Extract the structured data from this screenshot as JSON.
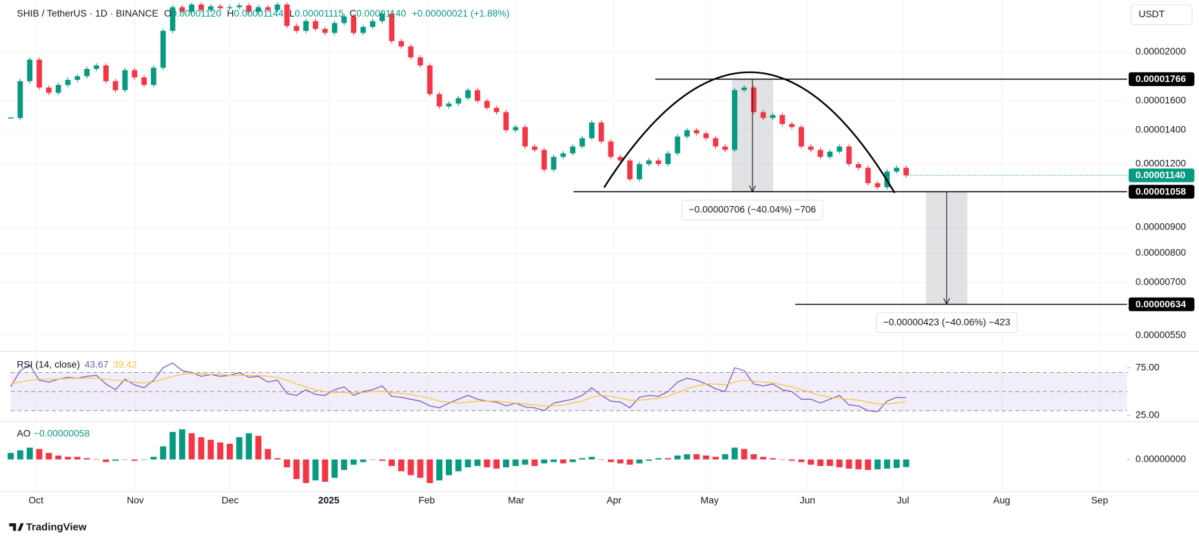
{
  "header": {
    "symbol": "SHIB / TetherUS · 1D · BINANCE",
    "o": "O",
    "open": "0.00001120",
    "h": "H",
    "high": "0.00001144",
    "l": "L",
    "low": "0.00001115",
    "c": "C",
    "close": "0.00001140",
    "change": "+0.00000021 (+1.88%)"
  },
  "currency": "USDT",
  "footer": "TradingView",
  "annotations": [
    "−0.00000706 (−40.04%) −706",
    "−0.00000423 (−40.06%) −423"
  ],
  "chart_data": [
    {
      "type": "candlestick",
      "log": true,
      "up_color": "#089981",
      "down_color": "#f23645",
      "categories": [
        "Oct",
        "Nov",
        "Dec",
        "2025",
        "Feb",
        "Mar",
        "Apr",
        "May",
        "Jun",
        "Jul",
        "Aug",
        "Sep"
      ],
      "closes": [
        1.48e-05,
        1.75e-05,
        1.93e-05,
        1.7e-05,
        1.66e-05,
        1.72e-05,
        1.76e-05,
        1.79e-05,
        1.85e-05,
        1.88e-05,
        1.75e-05,
        1.68e-05,
        1.84e-05,
        1.78e-05,
        1.72e-05,
        1.86e-05,
        2.2e-05,
        2.45e-05,
        2.4e-05,
        2.48e-05,
        2.42e-05,
        2.46e-05,
        2.44e-05,
        2.45e-05,
        2.47e-05,
        2.4e-05,
        2.45e-05,
        2.42e-05,
        2.48e-05,
        2.25e-05,
        2.2e-05,
        2.3e-05,
        2.22e-05,
        2.18e-05,
        2.28e-05,
        2.35e-05,
        2.18e-05,
        2.24e-05,
        2.3e-05,
        2.38e-05,
        2.1e-05,
        2.05e-05,
        1.95e-05,
        1.88e-05,
        1.65e-05,
        1.56e-05,
        1.58e-05,
        1.62e-05,
        1.68e-05,
        1.6e-05,
        1.55e-05,
        1.52e-05,
        1.4e-05,
        1.42e-05,
        1.3e-05,
        1.28e-05,
        1.17e-05,
        1.24e-05,
        1.26e-05,
        1.3e-05,
        1.35e-05,
        1.45e-05,
        1.33e-05,
        1.24e-05,
        1.22e-05,
        1.12e-05,
        1.2e-05,
        1.22e-05,
        1.2e-05,
        1.26e-05,
        1.36e-05,
        1.4e-05,
        1.38e-05,
        1.35e-05,
        1.3e-05,
        1.28e-05,
        1.68e-05,
        1.7e-05,
        1.52e-05,
        1.48e-05,
        1.5e-05,
        1.44e-05,
        1.42e-05,
        1.3e-05,
        1.28e-05,
        1.24e-05,
        1.27e-05,
        1.3e-05,
        1.2e-05,
        1.18e-05,
        1.1e-05,
        1.08e-05,
        1.16e-05,
        1.18e-05,
        1.14e-05
      ],
      "ylim": [
        5.14e-06,
        2.53e-05
      ],
      "yticks": [
        {
          "value": 2e-05,
          "label": "0.00002000"
        },
        {
          "value": 1.6e-05,
          "label": "0.00001600"
        },
        {
          "value": 1.4e-05,
          "label": "0.00001400"
        },
        {
          "value": 1.2e-05,
          "label": "0.00001200"
        },
        {
          "value": 9e-06,
          "label": "0.00000900"
        },
        {
          "value": 8e-06,
          "label": "0.00000800"
        },
        {
          "value": 7e-06,
          "label": "0.00000700"
        },
        {
          "value": 5.5e-06,
          "label": "0.00000550"
        }
      ],
      "levels": [
        {
          "value": 1.766e-05,
          "label": "0.00001766"
        },
        {
          "value": 1.058e-05,
          "label": "0.00001058"
        },
        {
          "value": 6.34e-06,
          "label": "0.00000634"
        }
      ],
      "last_price": {
        "value": 1.14e-05,
        "label": "0.00001140"
      },
      "grid": true
    },
    {
      "type": "line",
      "title": "RSI (14, close)",
      "ylim": [
        21,
        90
      ],
      "yticks": [
        {
          "value": 75,
          "label": "75.00"
        },
        {
          "value": 25,
          "label": "25.00"
        }
      ],
      "levels": [
        70,
        50,
        30
      ],
      "series": [
        {
          "name": "RSI",
          "color": "#7e57c2",
          "values": [
            55,
            72,
            78,
            62,
            60,
            63,
            65,
            64,
            66,
            67,
            58,
            52,
            63,
            57,
            54,
            62,
            75,
            80,
            72,
            70,
            66,
            68,
            66,
            67,
            70,
            65,
            66,
            60,
            62,
            48,
            46,
            52,
            47,
            46,
            52,
            55,
            46,
            50,
            52,
            56,
            45,
            44,
            42,
            40,
            35,
            33,
            38,
            42,
            46,
            42,
            40,
            39,
            35,
            38,
            34,
            33,
            30,
            38,
            40,
            42,
            46,
            54,
            46,
            40,
            39,
            33,
            44,
            46,
            45,
            50,
            60,
            64,
            62,
            58,
            53,
            50,
            75,
            72,
            58,
            56,
            58,
            52,
            50,
            42,
            42,
            38,
            42,
            46,
            36,
            35,
            30,
            29,
            40,
            44,
            43.67
          ]
        },
        {
          "name": "RSI MA",
          "color": "#f7c548",
          "values": [
            58,
            60,
            62,
            63,
            63,
            63,
            64,
            64,
            64,
            64,
            63,
            62,
            61,
            60,
            59,
            60,
            63,
            66,
            68,
            69,
            69,
            68,
            68,
            67,
            67,
            67,
            67,
            66,
            65,
            62,
            58,
            55,
            52,
            50,
            49,
            49,
            49,
            49,
            50,
            50,
            49,
            48,
            47,
            45,
            43,
            40,
            39,
            38,
            39,
            40,
            40,
            40,
            39,
            38,
            37,
            36,
            35,
            35,
            36,
            38,
            40,
            44,
            46,
            45,
            43,
            41,
            41,
            42,
            43,
            45,
            49,
            53,
            56,
            58,
            58,
            57,
            60,
            62,
            61,
            60,
            59,
            57,
            55,
            52,
            49,
            46,
            44,
            43,
            42,
            41,
            39,
            37,
            37,
            38,
            39.42
          ]
        }
      ]
    },
    {
      "type": "bar",
      "title": "AO",
      "value_label": "−0.00000058",
      "up_color": "#089981",
      "down_color": "#f23645",
      "ylim": [
        -2.3e-06,
        2.6e-06
      ],
      "yticks": [
        {
          "value": 0,
          "label": "0.00000000"
        }
      ],
      "values": [
        5e-07,
        7e-07,
        9e-07,
        8e-07,
        5e-07,
        3e-07,
        2e-07,
        2e-07,
        1e-07,
        0,
        -2e-07,
        -1e-07,
        0,
        -1e-07,
        0,
        2e-07,
        1e-06,
        2.1e-06,
        2.3e-06,
        2e-06,
        1.7e-06,
        1.5e-06,
        1.3e-06,
        1.2e-06,
        1.7e-06,
        2e-06,
        1.8e-06,
        8e-07,
        1e-07,
        -6e-07,
        -1.5e-06,
        -1.8e-06,
        -1.6e-06,
        -1.7e-06,
        -1.4e-06,
        -8e-07,
        -4e-07,
        -2e-07,
        0,
        -1e-07,
        -5e-07,
        -9e-07,
        -1.2e-06,
        -1.4e-06,
        -1.8e-06,
        -1.6e-06,
        -1.2e-06,
        -9e-07,
        -6e-07,
        -5e-07,
        -6e-07,
        -7e-07,
        -6e-07,
        -5e-07,
        -4e-07,
        -5e-07,
        -3e-07,
        -2e-07,
        -3e-07,
        -2e-07,
        1e-07,
        2e-07,
        0,
        -2e-07,
        -3e-07,
        -4e-07,
        -3e-07,
        -1e-07,
        1e-07,
        1e-07,
        3e-07,
        4e-07,
        4e-07,
        3e-07,
        2e-07,
        4e-07,
        9e-07,
        8e-07,
        4e-07,
        2e-07,
        1e-07,
        0,
        -1e-07,
        -2e-07,
        -4e-07,
        -5e-07,
        -5e-07,
        -6e-07,
        -7e-07,
        -7.5e-07,
        -8e-07,
        -7.5e-07,
        -7e-07,
        -6.5e-07,
        -5.8e-07
      ]
    }
  ]
}
